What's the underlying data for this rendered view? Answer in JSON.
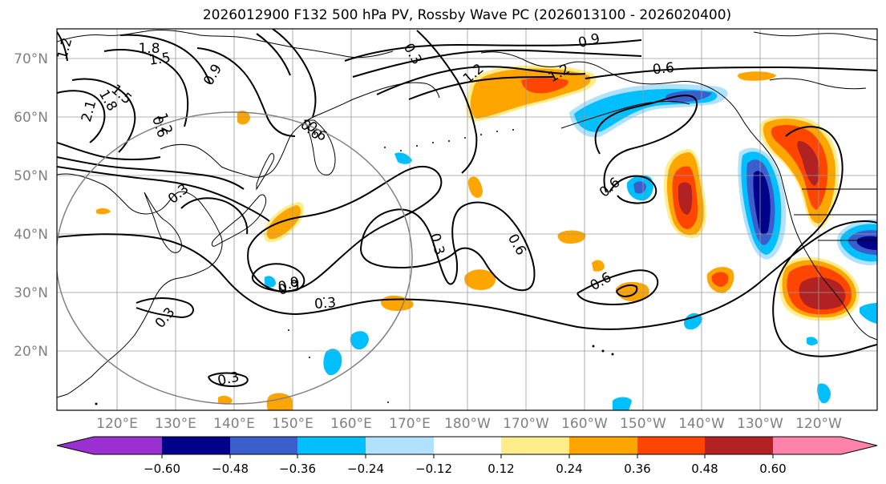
{
  "title": "2026012900 F132 500 hPa PV, Rossby Wave PC (2026013100 - 2026020400)",
  "map": {
    "lat_labels": [
      "70°N",
      "60°N",
      "50°N",
      "40°N",
      "30°N",
      "20°N"
    ],
    "lon_labels": [
      "120°E",
      "130°E",
      "140°E",
      "150°E",
      "160°E",
      "170°E",
      "180°W",
      "170°W",
      "160°W",
      "150°W",
      "140°W",
      "130°W",
      "120°W"
    ],
    "label_color": "#808080"
  },
  "contours": {
    "labels": [
      "0.9",
      "0.3",
      "0.6",
      "1.2",
      "0.6",
      "0.9",
      "1.8",
      "1.5",
      "1.2",
      "1.5",
      "2.1",
      "1.8",
      "1.2",
      "0.9",
      "0.6",
      "0.3",
      "0.6",
      "0.3",
      "0.6",
      "0.9",
      "0.3",
      "0.3",
      "0.3",
      "0.6",
      "0.6",
      "1.2"
    ]
  },
  "colorbar": {
    "ticks": [
      "−0.60",
      "−0.48",
      "−0.36",
      "−0.24",
      "−0.12",
      "0.12",
      "0.24",
      "0.36",
      "0.48",
      "0.60"
    ],
    "colors": [
      "#9b30d0",
      "#00008b",
      "#3a5fcd",
      "#00bfff",
      "#b0e2ff",
      "#ffffff",
      "#ffec8b",
      "#ffa500",
      "#ff4500",
      "#b22222",
      "#ff82ab"
    ]
  }
}
